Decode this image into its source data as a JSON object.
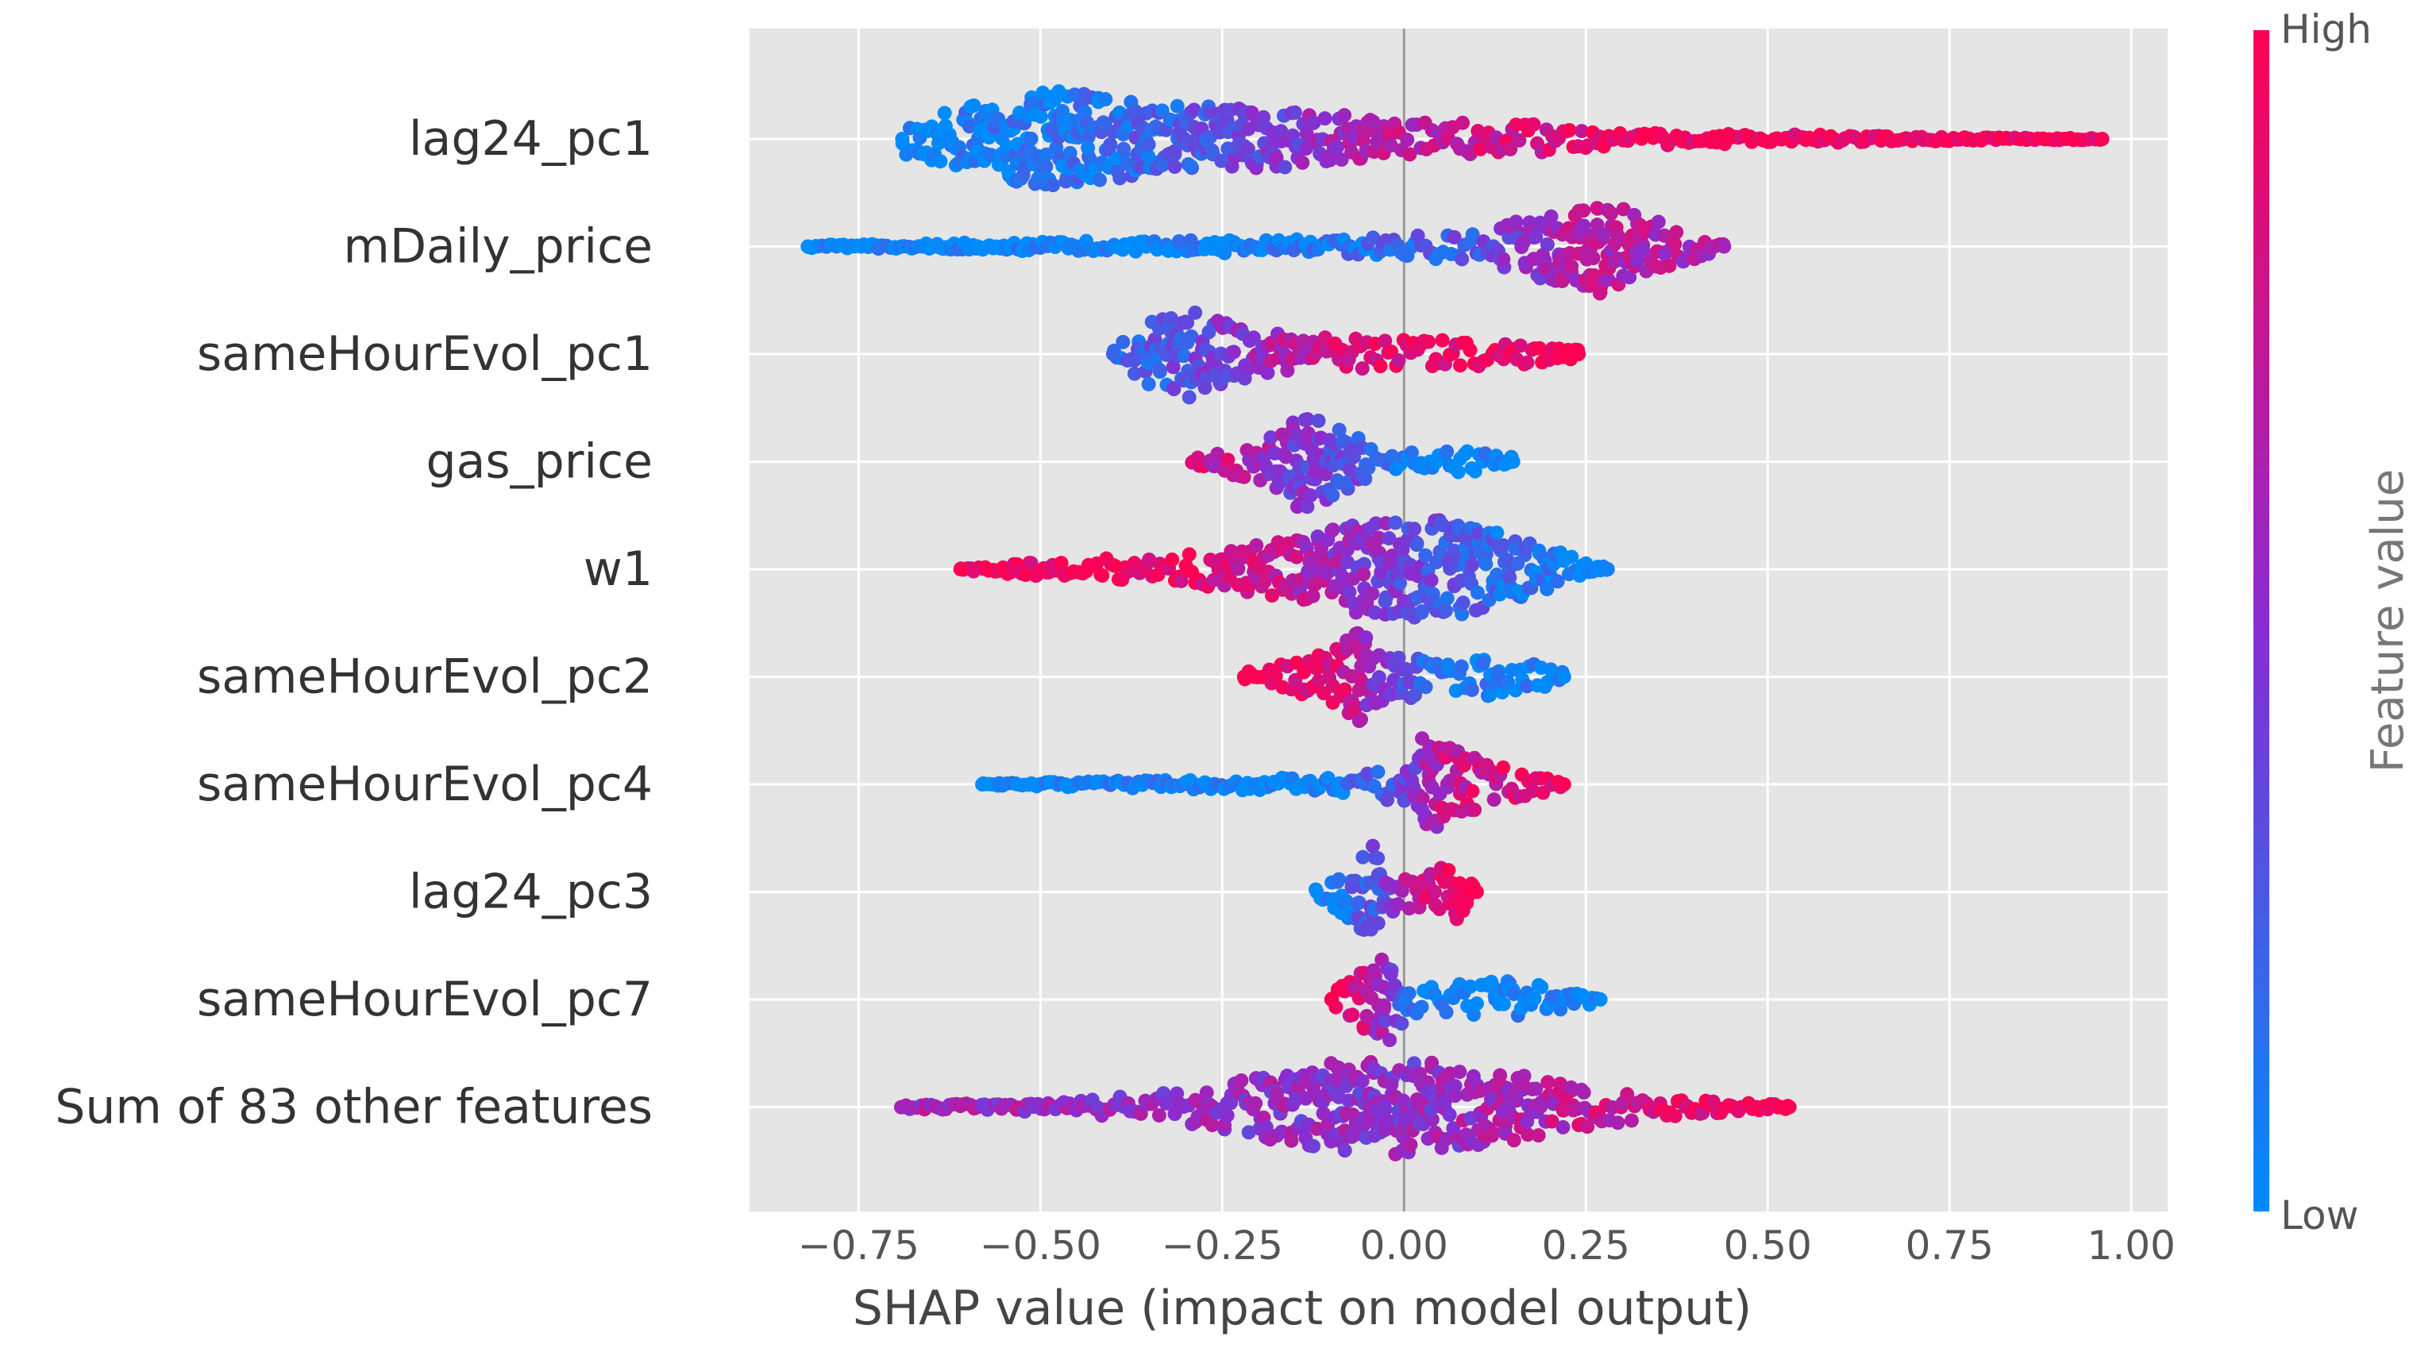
{
  "chart_data": {
    "type": "scatter",
    "subtype": "shap-beeswarm",
    "title": "",
    "xlabel": "SHAP value (impact on model output)",
    "ylabel": "",
    "xlim": [
      -0.9,
      1.05
    ],
    "xticks": [
      -0.75,
      -0.5,
      -0.25,
      0.0,
      0.25,
      0.5,
      0.75,
      1.0
    ],
    "xtick_labels": [
      "−0.75",
      "−0.50",
      "−0.25",
      "0.00",
      "0.25",
      "0.50",
      "0.75",
      "1.00"
    ],
    "grid": true,
    "zero_line": 0.0,
    "colorbar": {
      "label": "Feature value",
      "high_label": "High",
      "low_label": "Low",
      "high_color": "#ff0052",
      "mid_color": "#8a2cd0",
      "low_color": "#008bfb"
    },
    "colors": {
      "background": "#e5e5e5",
      "grid": "#ffffff",
      "zero_line": "#999999",
      "text": "#333333"
    },
    "features": [
      {
        "name": "lag24_pc1",
        "min": -0.69,
        "max": 0.96,
        "profile": [
          [
            -0.69,
            0.3
          ],
          [
            -0.55,
            0.85
          ],
          [
            -0.47,
            1.0
          ],
          [
            -0.35,
            0.7
          ],
          [
            -0.15,
            0.6
          ],
          [
            0.0,
            0.35
          ],
          [
            0.2,
            0.3
          ],
          [
            0.28,
            0.15
          ],
          [
            0.45,
            0.1
          ],
          [
            0.6,
            0.08
          ],
          [
            0.8,
            0.03
          ],
          [
            0.96,
            0.02
          ]
        ],
        "color_map": [
          [
            -0.69,
            0.0
          ],
          [
            -0.4,
            0.15
          ],
          [
            -0.2,
            0.4
          ],
          [
            0.0,
            0.7
          ],
          [
            0.3,
            0.95
          ],
          [
            0.96,
            1.0
          ]
        ]
      },
      {
        "name": "mDaily_price",
        "min": -0.82,
        "max": 0.44,
        "profile": [
          [
            -0.82,
            0.03
          ],
          [
            -0.4,
            0.12
          ],
          [
            -0.1,
            0.15
          ],
          [
            0.1,
            0.3
          ],
          [
            0.2,
            0.7
          ],
          [
            0.27,
            1.0
          ],
          [
            0.35,
            0.5
          ],
          [
            0.44,
            0.05
          ]
        ],
        "color_map": [
          [
            -0.82,
            0.0
          ],
          [
            -0.2,
            0.02
          ],
          [
            0.1,
            0.3
          ],
          [
            0.25,
            0.7
          ],
          [
            0.44,
            0.6
          ]
        ]
      },
      {
        "name": "sameHourEvol_pc1",
        "min": -0.4,
        "max": 0.24,
        "profile": [
          [
            -0.4,
            0.2
          ],
          [
            -0.31,
            1.0
          ],
          [
            -0.22,
            0.5
          ],
          [
            -0.1,
            0.35
          ],
          [
            0.0,
            0.3
          ],
          [
            0.15,
            0.25
          ],
          [
            0.24,
            0.1
          ]
        ],
        "color_map": [
          [
            -0.4,
            0.2
          ],
          [
            -0.3,
            0.3
          ],
          [
            -0.15,
            0.7
          ],
          [
            0.0,
            0.9
          ],
          [
            0.24,
            1.0
          ]
        ]
      },
      {
        "name": "gas_price",
        "min": -0.29,
        "max": 0.15,
        "profile": [
          [
            -0.29,
            0.1
          ],
          [
            -0.2,
            0.4
          ],
          [
            -0.14,
            1.0
          ],
          [
            -0.07,
            0.6
          ],
          [
            -0.03,
            0.1
          ],
          [
            0.0,
            0.2
          ],
          [
            0.1,
            0.25
          ],
          [
            0.15,
            0.1
          ]
        ],
        "color_map": [
          [
            -0.29,
            0.85
          ],
          [
            -0.15,
            0.45
          ],
          [
            -0.05,
            0.3
          ],
          [
            0.0,
            0.02
          ],
          [
            0.15,
            0.0
          ]
        ]
      },
      {
        "name": "w1",
        "min": -0.61,
        "max": 0.28,
        "profile": [
          [
            -0.61,
            0.02
          ],
          [
            -0.5,
            0.15
          ],
          [
            -0.3,
            0.3
          ],
          [
            -0.15,
            0.6
          ],
          [
            -0.05,
            1.0
          ],
          [
            0.05,
            1.0
          ],
          [
            0.15,
            0.7
          ],
          [
            0.25,
            0.15
          ],
          [
            0.28,
            0.05
          ]
        ],
        "color_map": [
          [
            -0.61,
            1.0
          ],
          [
            -0.3,
            0.95
          ],
          [
            -0.1,
            0.6
          ],
          [
            0.0,
            0.4
          ],
          [
            0.1,
            0.2
          ],
          [
            0.28,
            0.05
          ]
        ]
      },
      {
        "name": "sameHourEvol_pc2",
        "min": -0.22,
        "max": 0.22,
        "profile": [
          [
            -0.22,
            0.1
          ],
          [
            -0.1,
            0.5
          ],
          [
            -0.06,
            1.0
          ],
          [
            -0.02,
            0.4
          ],
          [
            0.0,
            0.5
          ],
          [
            0.05,
            0.25
          ],
          [
            0.12,
            0.4
          ],
          [
            0.22,
            0.15
          ]
        ],
        "color_map": [
          [
            -0.22,
            1.0
          ],
          [
            -0.1,
            0.9
          ],
          [
            -0.05,
            0.6
          ],
          [
            0.0,
            0.3
          ],
          [
            0.1,
            0.05
          ],
          [
            0.22,
            0.0
          ]
        ]
      },
      {
        "name": "sameHourEvol_pc4",
        "min": -0.58,
        "max": 0.22,
        "profile": [
          [
            -0.58,
            0.02
          ],
          [
            -0.3,
            0.1
          ],
          [
            -0.1,
            0.15
          ],
          [
            0.0,
            0.4
          ],
          [
            0.02,
            1.0
          ],
          [
            0.06,
            0.8
          ],
          [
            0.12,
            0.4
          ],
          [
            0.22,
            0.1
          ]
        ],
        "color_map": [
          [
            -0.58,
            0.0
          ],
          [
            -0.1,
            0.05
          ],
          [
            0.0,
            0.35
          ],
          [
            0.05,
            0.7
          ],
          [
            0.22,
            1.0
          ]
        ]
      },
      {
        "name": "lag24_pc3",
        "min": -0.12,
        "max": 0.1,
        "profile": [
          [
            -0.12,
            0.1
          ],
          [
            -0.04,
            1.0
          ],
          [
            -0.01,
            0.3
          ],
          [
            0.03,
            0.4
          ],
          [
            0.07,
            0.7
          ],
          [
            0.1,
            0.15
          ]
        ],
        "color_map": [
          [
            -0.12,
            0.0
          ],
          [
            -0.04,
            0.3
          ],
          [
            0.0,
            0.6
          ],
          [
            0.06,
            0.95
          ],
          [
            0.1,
            1.0
          ]
        ]
      },
      {
        "name": "sameHourEvol_pc7",
        "min": -0.1,
        "max": 0.27,
        "profile": [
          [
            -0.1,
            0.1
          ],
          [
            -0.03,
            1.0
          ],
          [
            0.01,
            0.3
          ],
          [
            0.05,
            0.3
          ],
          [
            0.14,
            0.4
          ],
          [
            0.27,
            0.1
          ]
        ],
        "color_map": [
          [
            -0.1,
            1.0
          ],
          [
            -0.05,
            0.7
          ],
          [
            -0.02,
            0.45
          ],
          [
            0.02,
            0.1
          ],
          [
            0.27,
            0.0
          ]
        ]
      },
      {
        "name": "Sum of 83 other features",
        "min": -0.69,
        "max": 0.53,
        "profile": [
          [
            -0.69,
            0.04
          ],
          [
            -0.45,
            0.12
          ],
          [
            -0.3,
            0.35
          ],
          [
            -0.1,
            0.9
          ],
          [
            -0.02,
            1.0
          ],
          [
            0.1,
            0.8
          ],
          [
            0.3,
            0.3
          ],
          [
            0.45,
            0.1
          ],
          [
            0.53,
            0.04
          ]
        ],
        "color_map": [
          [
            -0.69,
            0.6
          ],
          [
            0.0,
            0.5
          ],
          [
            0.53,
            1.0
          ]
        ]
      }
    ]
  }
}
